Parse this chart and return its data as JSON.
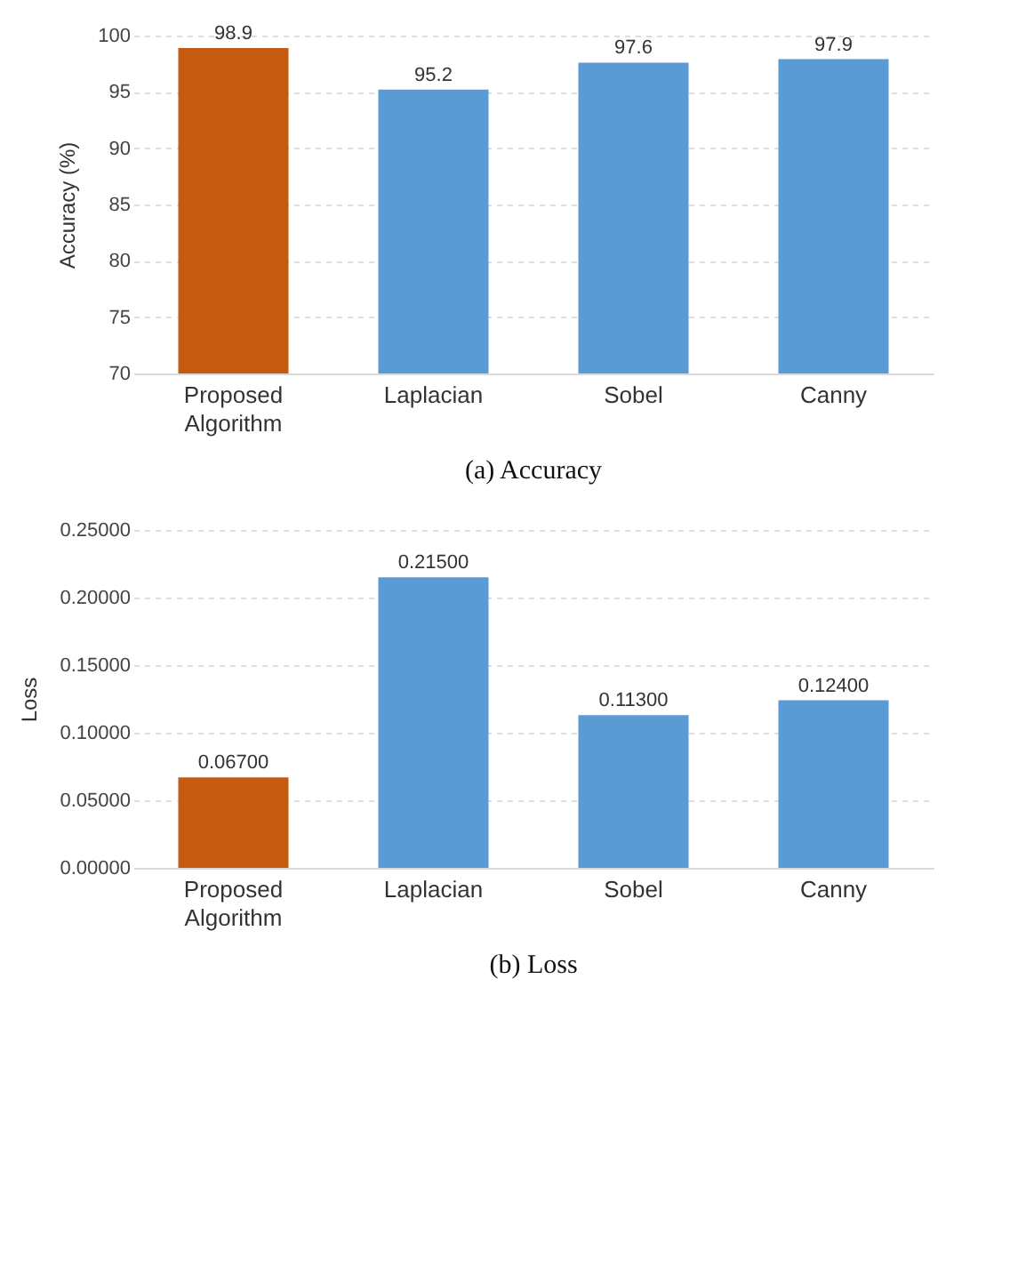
{
  "chart_data": [
    {
      "type": "bar",
      "title": "(a) Accuracy",
      "ylabel": "Accuracy (%)",
      "categories": [
        "Proposed Algorithm",
        "Laplacian",
        "Sobel",
        "Canny"
      ],
      "values": [
        98.9,
        95.2,
        97.6,
        97.9
      ],
      "colors": [
        "#c55a11",
        "#5b9bd5",
        "#5b9bd5",
        "#5b9bd5"
      ],
      "ylim": [
        70,
        100
      ],
      "yticks": [
        70,
        75,
        80,
        85,
        90,
        95,
        100
      ],
      "grid": "y",
      "data_labels": true
    },
    {
      "type": "bar",
      "title": "(b) Loss",
      "ylabel": "Loss",
      "categories": [
        "Proposed Algorithm",
        "Laplacian",
        "Sobel",
        "Canny"
      ],
      "values": [
        0.067,
        0.215,
        0.113,
        0.124
      ],
      "colors": [
        "#c55a11",
        "#5b9bd5",
        "#5b9bd5",
        "#5b9bd5"
      ],
      "value_labels": [
        "0.06700",
        "0.21500",
        "0.11300",
        "0.12400"
      ],
      "ylim": [
        0,
        0.25
      ],
      "yticks": [
        {
          "value": 0,
          "label": "0.00000"
        },
        {
          "value": 0.05,
          "label": "0.05000"
        },
        {
          "value": 0.1,
          "label": "0.10000"
        },
        {
          "value": 0.15,
          "label": "0.15000"
        },
        {
          "value": 0.2,
          "label": "0.20000"
        },
        {
          "value": 0.25,
          "label": "0.25000"
        }
      ],
      "grid": "y"
    }
  ]
}
